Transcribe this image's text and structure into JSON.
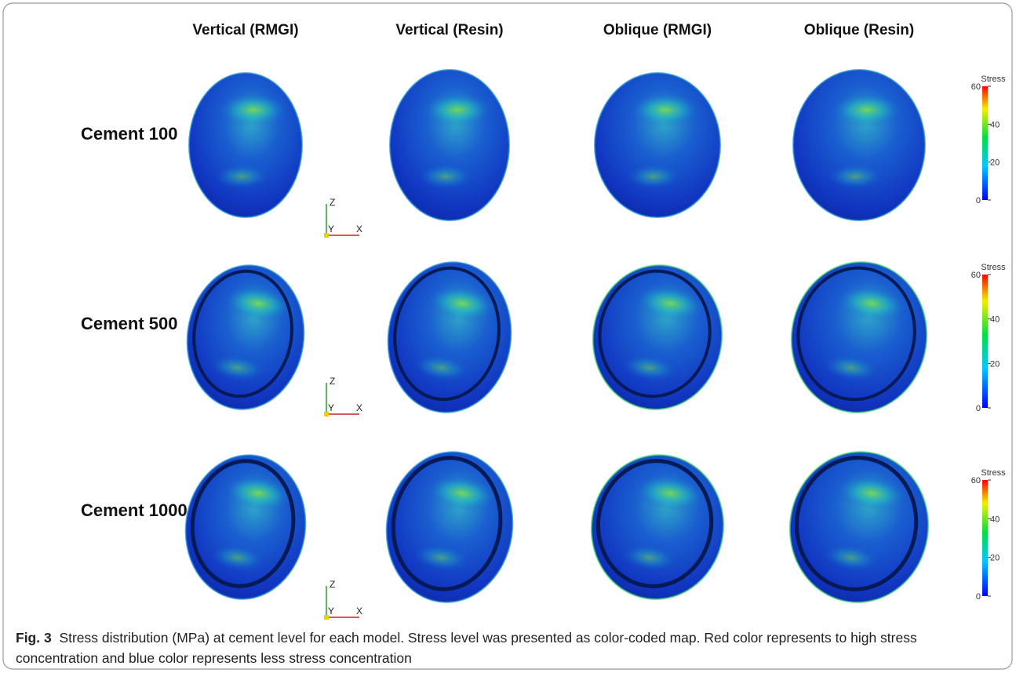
{
  "columns": [
    "Vertical (RMGI)",
    "Vertical (Resin)",
    "Oblique (RMGI)",
    "Oblique (Resin)"
  ],
  "rows": [
    "Cement 100",
    "Cement 500",
    "Cement 1000"
  ],
  "colorbar": {
    "title": "Stress",
    "ticks": [
      0,
      20,
      40,
      60
    ]
  },
  "axes": {
    "z": "Z",
    "y": "Y",
    "x": "X"
  },
  "caption": {
    "label": "Fig. 3",
    "text": "Stress distribution (MPa) at cement level for each model. Stress level was presented as color-coded map. Red color represents to high stress concentration and blue color represents less stress concentration"
  }
}
